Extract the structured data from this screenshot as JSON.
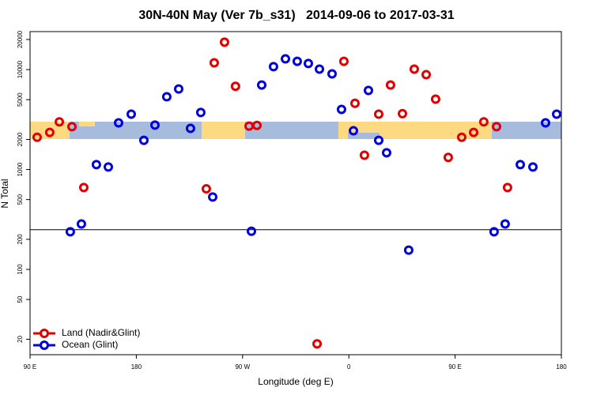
{
  "chart_data": {
    "type": "scatter",
    "title": "30N-40N May (Ver 7b_s31)   2014-09-06 to 2017-03-31",
    "xlabel": "Longitude (deg E)",
    "ylabel": "N Total",
    "log_y": true,
    "legend": "bottom-left",
    "hline": 250,
    "xlim": [
      90,
      540
    ],
    "xticks": [
      {
        "value": 90,
        "label": "90 E"
      },
      180,
      {
        "value": 270,
        "label": "90 W"
      },
      {
        "value": 360,
        "label": "0"
      },
      {
        "value": 450,
        "label": "90 E"
      },
      {
        "value": 540,
        "label": "180"
      }
    ],
    "ylim": [
      14,
      24000
    ],
    "yticks": [
      20,
      50,
      100,
      200,
      500,
      1000,
      2000,
      5000,
      10000,
      20000
    ],
    "series": [
      {
        "name": "Land (Nadir&Glint)",
        "color": "#e00000",
        "x": [
          96,
          106.7,
          114.8,
          125.5,
          135.5,
          239.3,
          246,
          254.7,
          264,
          275.5,
          282.2,
          333.1,
          355.8,
          365.2,
          373.2,
          385.3,
          395.3,
          405.4,
          415.4,
          425.5,
          433.5,
          444.2,
          455.6,
          465.7,
          474.3,
          485.1,
          494.4
        ],
        "values": [
          2100,
          2350,
          3000,
          2680,
          660,
          640,
          11700,
          18800,
          6800,
          2720,
          2760,
          18,
          12100,
          4600,
          1390,
          3580,
          7000,
          3620,
          10100,
          8900,
          5060,
          1320,
          2100,
          2350,
          3000,
          2680,
          660
        ]
      },
      {
        "name": "Ocean (Glint)",
        "color": "#0000dd",
        "x": [
          124.1,
          133.5,
          146.2,
          156.3,
          165,
          175.7,
          186.4,
          195.8,
          205.8,
          215.9,
          225.9,
          234.6,
          244.7,
          277.5,
          286.2,
          296.2,
          306.3,
          316.3,
          325.7,
          335.1,
          345.8,
          353.8,
          363.9,
          376.6,
          385.3,
          392,
          410.7,
          483,
          492.4,
          505.2,
          515.9,
          526.6,
          536
        ],
        "values": [
          238,
          285,
          1120,
          1060,
          2930,
          3580,
          1960,
          2780,
          5340,
          6400,
          2580,
          3720,
          530,
          241,
          7000,
          10700,
          12800,
          12100,
          11500,
          10100,
          9060,
          3990,
          2440,
          6180,
          1960,
          1470,
          156,
          238,
          285,
          1120,
          1060,
          2930,
          3580
        ]
      }
    ]
  }
}
